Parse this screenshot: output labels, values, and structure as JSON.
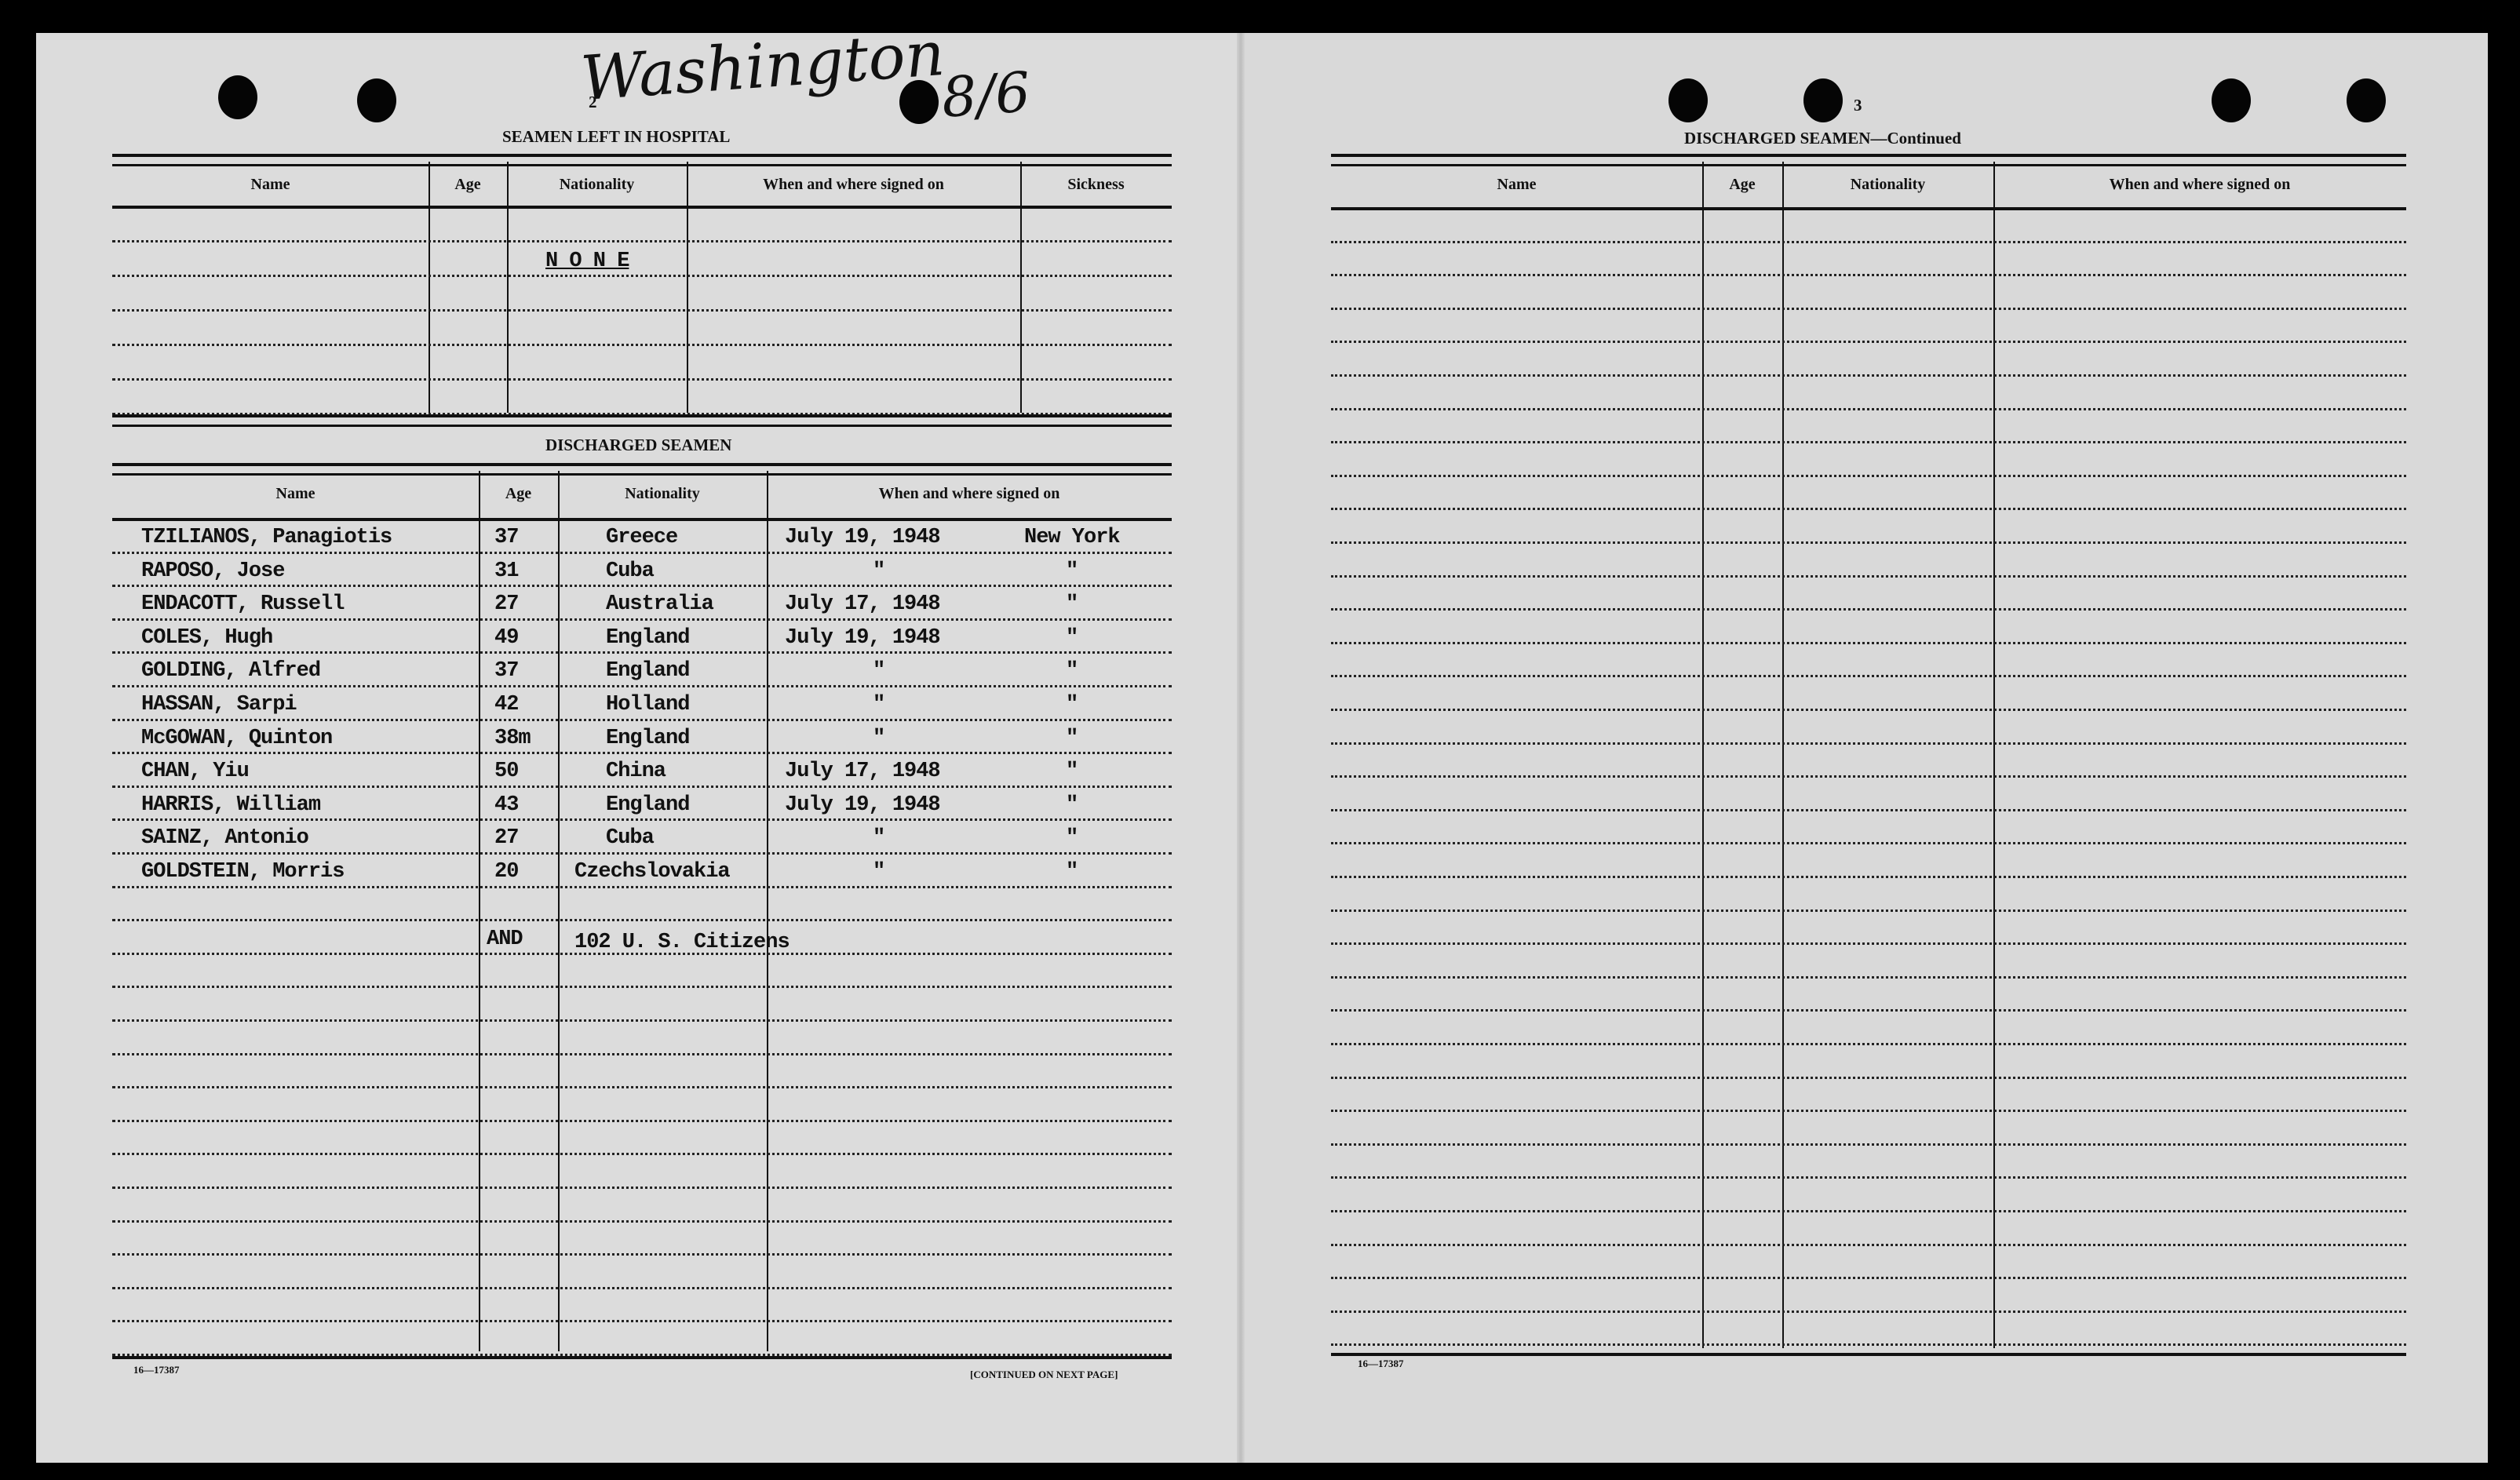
{
  "handwriting": {
    "place": "Washington",
    "date": "8/6"
  },
  "left_page": {
    "page_number": "2",
    "hospital": {
      "title": "SEAMEN LEFT IN HOSPITAL",
      "headers": [
        "Name",
        "Age",
        "Nationality",
        "When and where signed on",
        "Sickness"
      ],
      "entry": "N O N E"
    },
    "discharged": {
      "title": "DISCHARGED SEAMEN",
      "headers": [
        "Name",
        "Age",
        "Nationality",
        "When and where signed on"
      ],
      "rows": [
        {
          "name": "TZILIANOS, Panagiotis",
          "age": "37",
          "nationality": "Greece",
          "date": "July 19, 1948",
          "place": "New York"
        },
        {
          "name": "RAPOSO, Jose",
          "age": "31",
          "nationality": "Cuba",
          "date": "\"",
          "place": "\""
        },
        {
          "name": "ENDACOTT, Russell",
          "age": "27",
          "nationality": "Australia",
          "date": "July 17, 1948",
          "place": "\""
        },
        {
          "name": "COLES, Hugh",
          "age": "49",
          "nationality": "England",
          "date": "July 19, 1948",
          "place": "\""
        },
        {
          "name": "GOLDING, Alfred",
          "age": "37",
          "nationality": "England",
          "date": "\"",
          "place": "\""
        },
        {
          "name": "HASSAN, Sarpi",
          "age": "42",
          "nationality": "Holland",
          "date": "\"",
          "place": "\""
        },
        {
          "name": "McGOWAN, Quinton",
          "age": "38m",
          "nationality": "England",
          "date": "\"",
          "place": "\""
        },
        {
          "name": "CHAN, Yiu",
          "age": "50",
          "nationality": "China",
          "date": "July 17, 1948",
          "place": "\""
        },
        {
          "name": "HARRIS, William",
          "age": "43",
          "nationality": "England",
          "date": "July 19, 1948",
          "place": "\""
        },
        {
          "name": "SAINZ, Antonio",
          "age": "27",
          "nationality": "Cuba",
          "date": "\"",
          "place": "\""
        },
        {
          "name": "GOLDSTEIN, Morris",
          "age": "20",
          "nationality": "Czechslovakia",
          "date": "\"",
          "place": "\""
        }
      ],
      "extra": {
        "and": "AND",
        "citizens": "102  U. S. Citizens"
      }
    },
    "form_number": "16—17387",
    "continued": "[CONTINUED ON NEXT PAGE]"
  },
  "right_page": {
    "page_number": "3",
    "title": "DISCHARGED SEAMEN—Continued",
    "headers": [
      "Name",
      "Age",
      "Nationality",
      "When and where signed on"
    ],
    "form_number": "16—17387"
  }
}
